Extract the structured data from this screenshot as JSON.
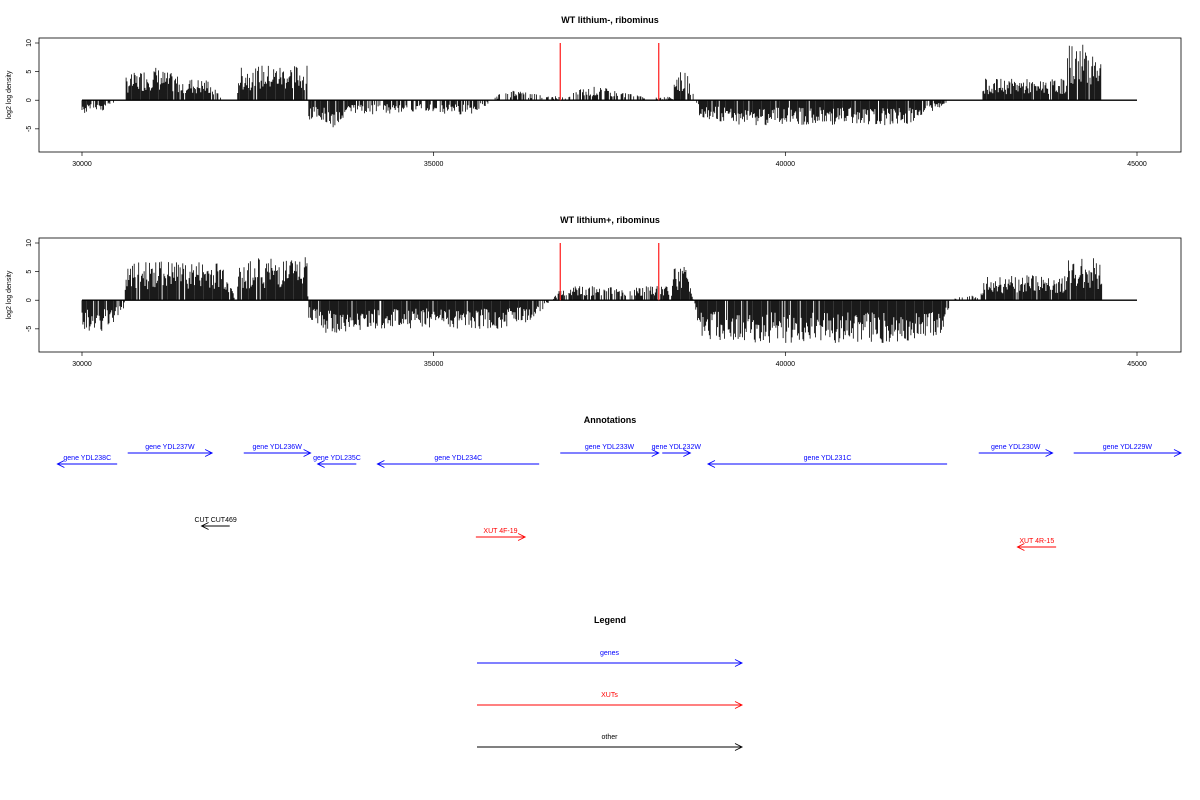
{
  "colors": {
    "bar": "#000000",
    "highlight": "#ff2b2b",
    "genes": "#0000ff",
    "xuts": "#ff0000",
    "other": "#000000",
    "frame": "#000000"
  },
  "chart_data": [
    {
      "type": "bar",
      "title": "WT lithium-, ribominus",
      "ylabel": "log2 log density",
      "xlim": [
        30000,
        45000
      ],
      "ylim": [
        -8,
        10
      ],
      "xticks": [
        "30000",
        "35000",
        "40000",
        "45000"
      ],
      "yticks": [
        "10",
        "5",
        "0",
        "-5"
      ],
      "baseline": 0,
      "series": [
        {
          "kind": "signal",
          "x": [
            30000,
            30300,
            30600,
            30620,
            30800,
            31000,
            31200,
            31400,
            31600,
            31800,
            32000,
            32200,
            32220,
            32400,
            32600,
            32800,
            33000,
            33200,
            33220,
            33400,
            33600,
            33800,
            34000,
            34400,
            34800,
            35200,
            35600,
            36000,
            36400,
            36800,
            37200,
            37600,
            38000,
            38400,
            38420,
            38600,
            38800,
            39000,
            39400,
            39800,
            40200,
            40600,
            41000,
            41400,
            41800,
            42200,
            42400,
            42800,
            42820,
            43200,
            43600,
            44000,
            44020,
            44200,
            44400,
            44500
          ],
          "y": [
            -2,
            -1.5,
            0.4,
            3.5,
            4,
            5,
            4,
            3.5,
            3,
            3,
            0.3,
            -0.5,
            4.5,
            5,
            5,
            5,
            5,
            5,
            -3,
            -3.5,
            -4,
            -2,
            -2,
            -2,
            -1.5,
            -2,
            -2,
            1.5,
            1,
            0.5,
            2,
            1.5,
            0.5,
            0.5,
            4,
            4,
            -3,
            -3,
            -3.5,
            -3.5,
            -3.5,
            -3.5,
            -3.5,
            -3.5,
            -3.5,
            -1,
            0.2,
            0.3,
            3,
            3,
            3,
            3,
            8,
            8,
            7.5,
            6.5
          ]
        },
        {
          "kind": "spike",
          "x": [
            36800,
            38200
          ],
          "y": [
            10,
            10
          ]
        }
      ]
    },
    {
      "type": "bar",
      "title": "WT lithium+, ribominus",
      "ylabel": "log2 log density",
      "xlim": [
        30000,
        45000
      ],
      "ylim": [
        -8,
        10
      ],
      "xticks": [
        "30000",
        "35000",
        "40000",
        "45000"
      ],
      "yticks": [
        "10",
        "5",
        "0",
        "-5"
      ],
      "baseline": 0,
      "series": [
        {
          "kind": "signal",
          "x": [
            30000,
            30200,
            30400,
            30600,
            30620,
            30800,
            31000,
            31200,
            31400,
            31600,
            31800,
            32000,
            32200,
            32220,
            32400,
            32600,
            32800,
            33000,
            33200,
            33220,
            33400,
            33600,
            33800,
            34000,
            34400,
            34800,
            35200,
            35600,
            36000,
            36400,
            36800,
            37000,
            37400,
            37800,
            38200,
            38400,
            38420,
            38600,
            38800,
            39000,
            39400,
            39800,
            40200,
            40600,
            41000,
            41400,
            41800,
            42200,
            42400,
            42800,
            42820,
            43200,
            43600,
            44000,
            44020,
            44200,
            44400,
            44500
          ],
          "y": [
            -4,
            -4.5,
            -4,
            -1,
            4.5,
            5.5,
            5.5,
            5.5,
            5.5,
            5.5,
            5.5,
            5.5,
            -0.5,
            5,
            6,
            6,
            6,
            6,
            6,
            -3,
            -4.5,
            -5,
            -5,
            -4,
            -4,
            -4,
            -4,
            -4,
            -4,
            -3,
            1.5,
            2,
            2,
            2,
            2,
            2,
            5,
            5,
            -5.5,
            -5.5,
            -6,
            -6,
            -6,
            -6,
            -6,
            -6,
            -6,
            -5,
            0.5,
            1,
            3.5,
            3.5,
            3.5,
            3.5,
            6,
            6,
            6,
            5
          ]
        },
        {
          "kind": "spike",
          "x": [
            36800,
            38200
          ],
          "y": [
            10,
            10
          ]
        }
      ]
    }
  ],
  "annotations": {
    "title": "Annotations",
    "xlim": [
      30000,
      45000
    ],
    "features": [
      {
        "label": "gene YDL238C",
        "type": "genes",
        "start": 29650,
        "end": 30500,
        "strand": "-",
        "row": 2
      },
      {
        "label": "gene YDL237W",
        "type": "genes",
        "start": 30650,
        "end": 31850,
        "strand": "+",
        "row": 1
      },
      {
        "label": "gene YDL236W",
        "type": "genes",
        "start": 32300,
        "end": 33250,
        "strand": "+",
        "row": 1
      },
      {
        "label": "gene YDL235C",
        "type": "genes",
        "start": 33350,
        "end": 33900,
        "strand": "-",
        "row": 2
      },
      {
        "label": "gene YDL234C",
        "type": "genes",
        "start": 34200,
        "end": 36500,
        "strand": "-",
        "row": 2
      },
      {
        "label": "gene YDL233W",
        "type": "genes",
        "start": 36800,
        "end": 38200,
        "strand": "+",
        "row": 1
      },
      {
        "label": "gene YDL232W",
        "type": "genes",
        "start": 38250,
        "end": 38650,
        "strand": "+",
        "row": 1
      },
      {
        "label": "gene YDL231C",
        "type": "genes",
        "start": 38900,
        "end": 42300,
        "strand": "-",
        "row": 2
      },
      {
        "label": "gene YDL230W",
        "type": "genes",
        "start": 42750,
        "end": 43800,
        "strand": "+",
        "row": 1
      },
      {
        "label": "gene YDL229W",
        "type": "genes",
        "start": 44100,
        "end": 45800,
        "strand": "+",
        "row": 1
      },
      {
        "label": "CUT CUT469",
        "type": "other",
        "start": 31700,
        "end": 32100,
        "strand": "-",
        "row": 3
      },
      {
        "label": "XUT 4F-19",
        "type": "xuts",
        "start": 35600,
        "end": 36300,
        "strand": "+",
        "row": 4
      },
      {
        "label": "XUT 4R-15",
        "type": "xuts",
        "start": 43300,
        "end": 43850,
        "strand": "-",
        "row": 5
      }
    ]
  },
  "legend": {
    "title": "Legend",
    "items": [
      {
        "label": "genes",
        "type": "genes"
      },
      {
        "label": "XUTs",
        "type": "xuts"
      },
      {
        "label": "other",
        "type": "other"
      }
    ]
  }
}
